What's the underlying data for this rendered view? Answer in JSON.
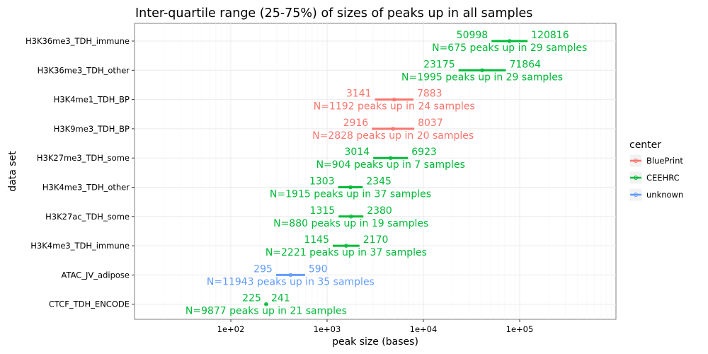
{
  "chart_data": {
    "type": "range",
    "title": "Inter-quartile range (25-75%) of sizes of peaks up in all samples",
    "xlabel": "peak size (bases)",
    "ylabel": "data set",
    "x_scale": "log10",
    "xlim": [
      10,
      1000000
    ],
    "x_ticks": [
      100,
      1000,
      10000,
      100000
    ],
    "x_tick_labels": [
      "1e+02",
      "1e+03",
      "1e+04",
      "1e+05"
    ],
    "grid": true,
    "legend": {
      "title": "center",
      "position": "right",
      "entries": [
        {
          "name": "BluePrint",
          "color": "#F8766D"
        },
        {
          "name": "CEEHRC",
          "color": "#00BA38"
        },
        {
          "name": "unknown",
          "color": "#619CFF"
        }
      ]
    },
    "series": [
      {
        "dataset": "H3K36me3_TDH_immune",
        "center": "CEEHRC",
        "q25": 50998,
        "q75": 120816,
        "count_label": "N=675 peaks up in 29 samples"
      },
      {
        "dataset": "H3K36me3_TDH_other",
        "center": "CEEHRC",
        "q25": 23175,
        "q75": 71864,
        "count_label": "N=1995 peaks up in 29 samples"
      },
      {
        "dataset": "H3K4me1_TDH_BP",
        "center": "BluePrint",
        "q25": 3141,
        "q75": 7883,
        "count_label": "N=1192 peaks up in 24 samples"
      },
      {
        "dataset": "H3K9me3_TDH_BP",
        "center": "BluePrint",
        "q25": 2916,
        "q75": 8037,
        "count_label": "N=2828 peaks up in 20 samples"
      },
      {
        "dataset": "H3K27me3_TDH_some",
        "center": "CEEHRC",
        "q25": 3014,
        "q75": 6923,
        "count_label": "N=904 peaks up in 7 samples"
      },
      {
        "dataset": "H3K4me3_TDH_other",
        "center": "CEEHRC",
        "q25": 1303,
        "q75": 2345,
        "count_label": "N=1915 peaks up in 37 samples"
      },
      {
        "dataset": "H3K27ac_TDH_some",
        "center": "CEEHRC",
        "q25": 1315,
        "q75": 2380,
        "count_label": "N=880 peaks up in 19 samples"
      },
      {
        "dataset": "H3K4me3_TDH_immune",
        "center": "CEEHRC",
        "q25": 1145,
        "q75": 2170,
        "count_label": "N=2221 peaks up in 37 samples"
      },
      {
        "dataset": "ATAC_JV_adipose",
        "center": "unknown",
        "q25": 295,
        "q75": 590,
        "count_label": "N=11943 peaks up in 35 samples"
      },
      {
        "dataset": "CTCF_TDH_ENCODE",
        "center": "CEEHRC",
        "q25": 225,
        "q75": 241,
        "count_label": "N=9877 peaks up in 21 samples"
      }
    ]
  }
}
